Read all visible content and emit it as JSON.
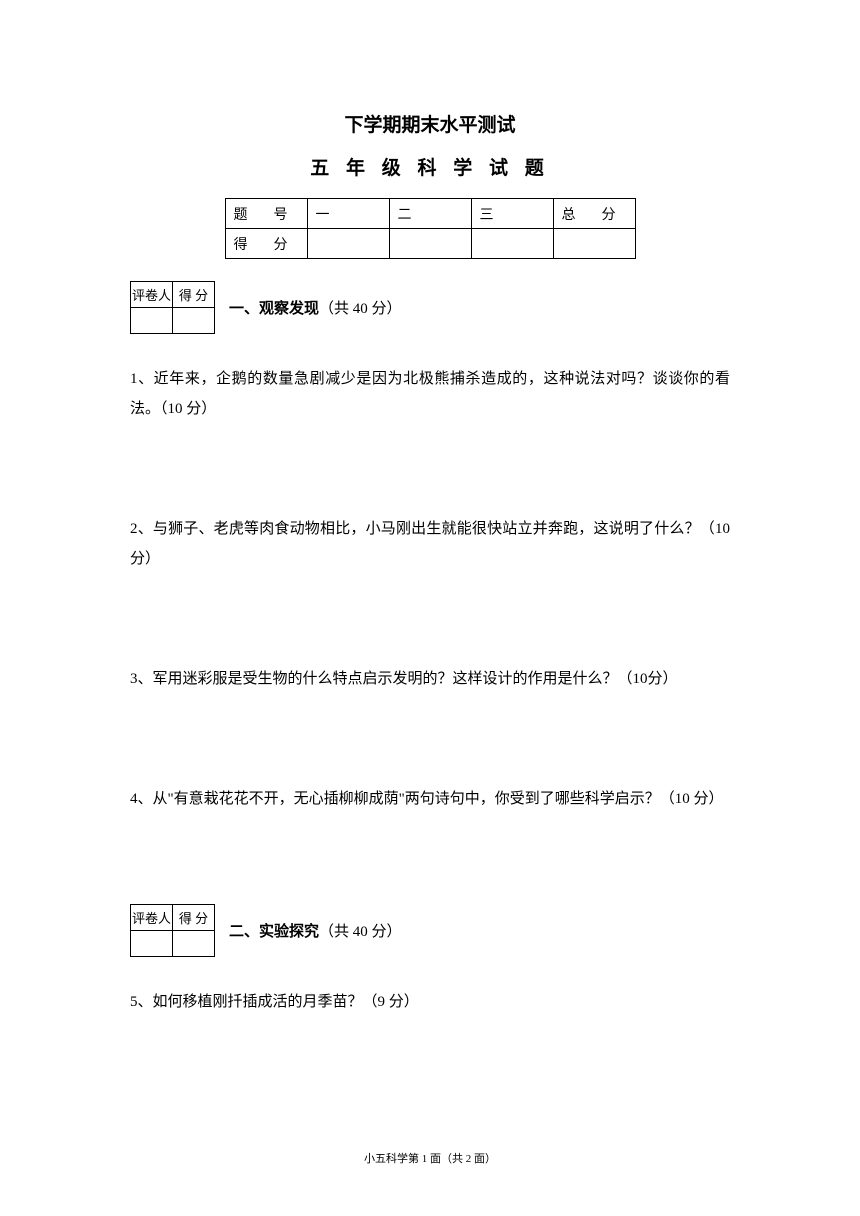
{
  "title1": "下学期期末水平测试",
  "title2": "五 年 级 科 学 试 题",
  "scoreTable": {
    "rowLabels": [
      "题　号",
      "得　分"
    ],
    "cols": [
      "一",
      "二",
      "三",
      "总　分"
    ]
  },
  "graderTable": {
    "headers": [
      "评卷人",
      "得 分"
    ]
  },
  "section1": {
    "number": "一、",
    "title": "观察发现",
    "points": "（共 40 分）"
  },
  "section2": {
    "number": "二、",
    "title": "实验探究",
    "points": "（共 40 分）"
  },
  "questions": {
    "q1": "1、近年来，企鹅的数量急剧减少是因为北极熊捕杀造成的，这种说法对吗？谈谈你的看法。（10 分）",
    "q2": "2、与狮子、老虎等肉食动物相比，小马刚出生就能很快站立并奔跑，这说明了什么？（10 分）",
    "q3": "3、军用迷彩服是受生物的什么特点启示发明的？这样设计的作用是什么？（10分）",
    "q4": "4、从\"有意栽花花不开，无心插柳柳成荫\"两句诗句中，你受到了哪些科学启示？（10 分）",
    "q5": "5、如何移植刚扦插成活的月季苗？（9 分）"
  },
  "footer": "小五科学第 1 面（共 2 面）"
}
